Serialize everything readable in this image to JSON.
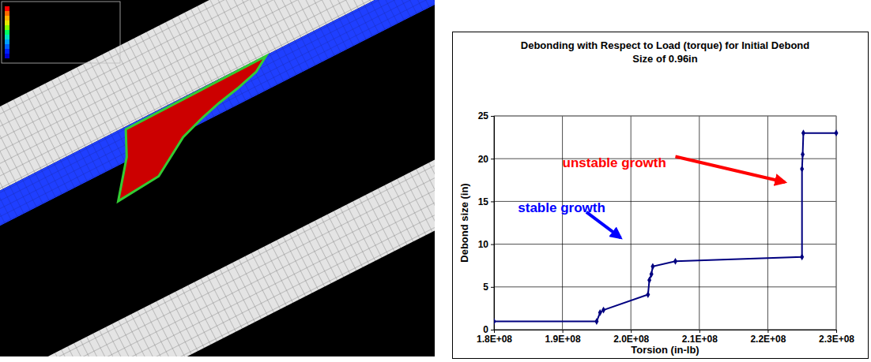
{
  "chart_data": {
    "type": "line",
    "title": "Debonding with Respect to Load (torque) for Initial Debond Size of 0.96in",
    "x_label": "Torsion (in-lb)",
    "y_label": "Debond size (in)",
    "x": [
      180000000,
      195000000,
      195500000,
      196000000,
      202500000,
      202700000,
      203000000,
      203200000,
      206500000,
      225000000,
      225000000,
      225100000,
      225200000,
      230000000
    ],
    "values": [
      0.96,
      0.96,
      2.0,
      2.3,
      4.1,
      5.8,
      6.5,
      7.4,
      8.0,
      8.5,
      18.8,
      20.5,
      23.0,
      23.0
    ],
    "color": "#000080",
    "marker": "diamond",
    "xlim": [
      180000000,
      230000000
    ],
    "xticks": [
      {
        "value": 180000000,
        "label": "1.8E+08"
      },
      {
        "value": 190000000,
        "label": "1.9E+08"
      },
      {
        "value": 200000000,
        "label": "2.0E+08"
      },
      {
        "value": 210000000,
        "label": "2.1E+08"
      },
      {
        "value": 220000000,
        "label": "2.2E+08"
      },
      {
        "value": 230000000,
        "label": "2.3E+08"
      }
    ],
    "ylim": [
      0,
      25
    ],
    "yticks": [
      0,
      5,
      10,
      15,
      20,
      25
    ],
    "grid": true,
    "annotations": [
      {
        "text": "unstable growth",
        "color": "#ff0000"
      },
      {
        "text": "stable growth",
        "color": "#0000ff"
      }
    ]
  }
}
